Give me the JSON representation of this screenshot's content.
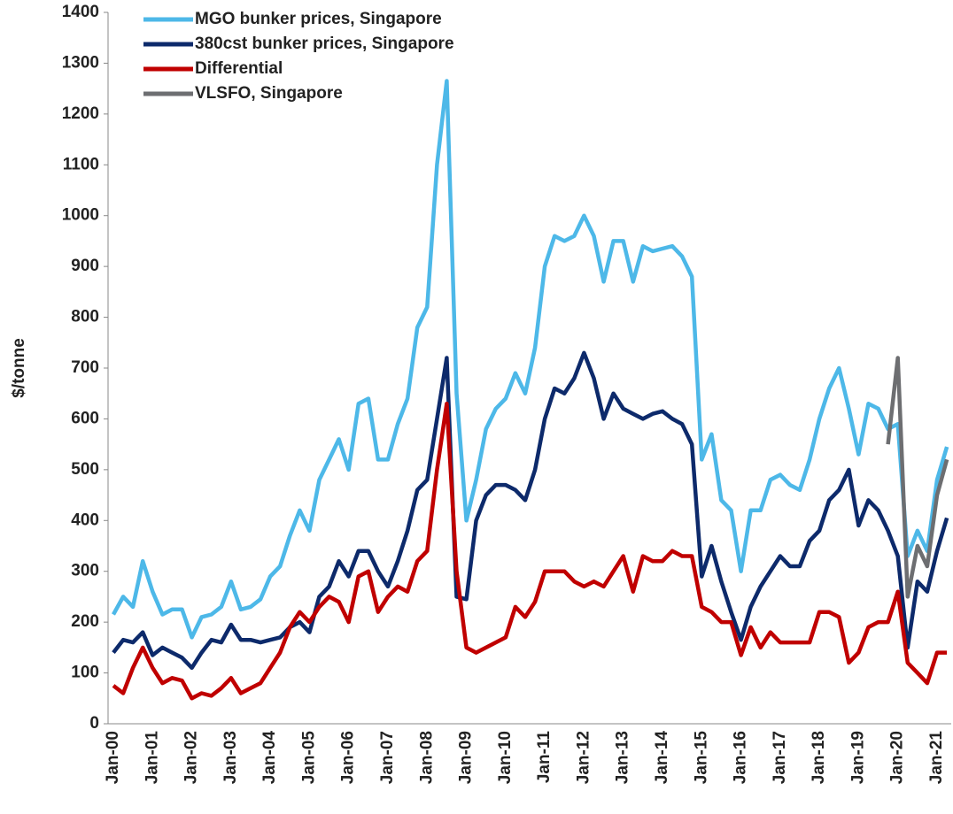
{
  "chart_data": {
    "type": "line",
    "ylabel": "$/tonne",
    "categories": [
      "Jan-00",
      null,
      null,
      null,
      "Jan-01",
      null,
      null,
      null,
      "Jan-02",
      null,
      null,
      null,
      "Jan-03",
      null,
      null,
      null,
      "Jan-04",
      null,
      null,
      null,
      "Jan-05",
      null,
      null,
      null,
      "Jan-06",
      null,
      null,
      null,
      "Jan-07",
      null,
      null,
      null,
      "Jan-08",
      null,
      null,
      null,
      "Jan-09",
      null,
      null,
      null,
      "Jan-10",
      null,
      null,
      null,
      "Jan-11",
      null,
      null,
      null,
      "Jan-12",
      null,
      null,
      null,
      "Jan-13",
      null,
      null,
      null,
      "Jan-14",
      null,
      null,
      null,
      "Jan-15",
      null,
      null,
      null,
      "Jan-16",
      null,
      null,
      null,
      "Jan-17",
      null,
      null,
      null,
      "Jan-18",
      null,
      null,
      null,
      "Jan-19",
      null,
      null,
      null,
      "Jan-20",
      null,
      null,
      null,
      "Jan-21",
      null
    ],
    "series": [
      {
        "name": "MGO bunker prices, Singapore",
        "color": "#4db8e8",
        "values": [
          215,
          250,
          230,
          320,
          260,
          215,
          225,
          225,
          170,
          210,
          215,
          230,
          280,
          225,
          230,
          245,
          290,
          310,
          370,
          420,
          380,
          480,
          520,
          560,
          500,
          630,
          640,
          520,
          520,
          590,
          640,
          780,
          820,
          1100,
          1265,
          650,
          400,
          480,
          580,
          620,
          640,
          690,
          650,
          740,
          900,
          960,
          950,
          960,
          1000,
          960,
          870,
          950,
          950,
          870,
          940,
          930,
          935,
          940,
          920,
          880,
          520,
          570,
          440,
          420,
          300,
          420,
          420,
          480,
          490,
          470,
          460,
          520,
          600,
          660,
          700,
          620,
          530,
          630,
          620,
          580,
          590,
          330,
          380,
          340,
          480,
          545
        ]
      },
      {
        "name": "380cst bunker prices, Singapore",
        "color": "#0d2a6b",
        "values": [
          140,
          165,
          160,
          180,
          135,
          150,
          140,
          130,
          110,
          140,
          165,
          160,
          195,
          165,
          165,
          160,
          165,
          170,
          190,
          200,
          180,
          250,
          270,
          320,
          290,
          340,
          340,
          300,
          270,
          320,
          380,
          460,
          480,
          600,
          720,
          250,
          245,
          400,
          450,
          470,
          470,
          460,
          440,
          500,
          600,
          660,
          650,
          680,
          730,
          680,
          600,
          650,
          620,
          610,
          600,
          610,
          615,
          600,
          590,
          550,
          290,
          350,
          280,
          220,
          165,
          230,
          270,
          300,
          330,
          310,
          310,
          360,
          380,
          440,
          460,
          500,
          390,
          440,
          420,
          380,
          330,
          150,
          280,
          260,
          340,
          405
        ]
      },
      {
        "name": "Differential",
        "color": "#c00000",
        "values": [
          75,
          60,
          110,
          150,
          110,
          80,
          90,
          85,
          50,
          60,
          55,
          70,
          90,
          60,
          70,
          80,
          110,
          140,
          190,
          220,
          200,
          230,
          250,
          240,
          200,
          290,
          300,
          220,
          250,
          270,
          260,
          320,
          340,
          500,
          630,
          300,
          150,
          140,
          150,
          160,
          170,
          230,
          210,
          240,
          300,
          300,
          300,
          280,
          270,
          280,
          270,
          300,
          330,
          260,
          330,
          320,
          320,
          340,
          330,
          330,
          230,
          220,
          200,
          200,
          135,
          190,
          150,
          180,
          160,
          160,
          160,
          160,
          220,
          220,
          210,
          120,
          140,
          190,
          200,
          200,
          260,
          120,
          100,
          80,
          140,
          140
        ]
      },
      {
        "name": "VLSFO, Singapore",
        "color": "#6d6e71",
        "values": [
          null,
          null,
          null,
          null,
          null,
          null,
          null,
          null,
          null,
          null,
          null,
          null,
          null,
          null,
          null,
          null,
          null,
          null,
          null,
          null,
          null,
          null,
          null,
          null,
          null,
          null,
          null,
          null,
          null,
          null,
          null,
          null,
          null,
          null,
          null,
          null,
          null,
          null,
          null,
          null,
          null,
          null,
          null,
          null,
          null,
          null,
          null,
          null,
          null,
          null,
          null,
          null,
          null,
          null,
          null,
          null,
          null,
          null,
          null,
          null,
          null,
          null,
          null,
          null,
          null,
          null,
          null,
          null,
          null,
          null,
          null,
          null,
          null,
          null,
          null,
          null,
          null,
          null,
          null,
          550,
          720,
          250,
          350,
          310,
          450,
          520
        ]
      }
    ],
    "ylim": [
      0,
      1400
    ],
    "yticks": [
      0,
      100,
      200,
      300,
      400,
      500,
      600,
      700,
      800,
      900,
      1000,
      1100,
      1200,
      1300,
      1400
    ]
  }
}
